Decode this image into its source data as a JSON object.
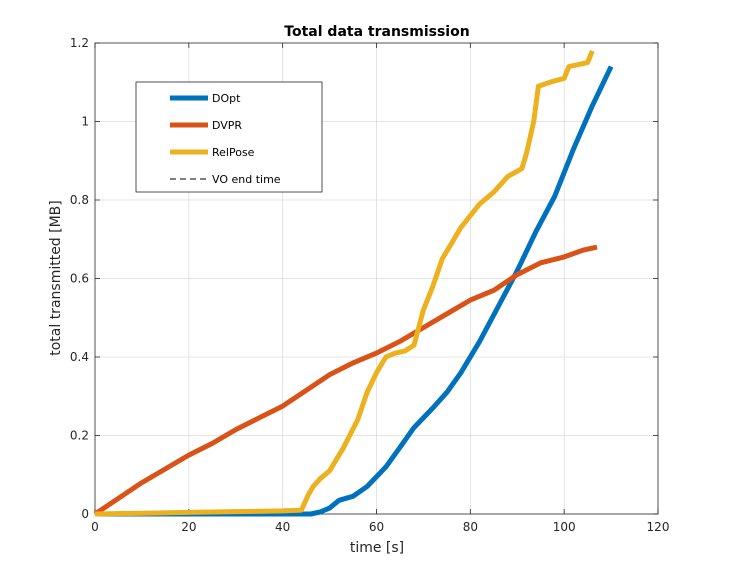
{
  "chart_data": {
    "type": "line",
    "title": "Total data transmission",
    "xlabel": "time [s]",
    "ylabel": "total transmitted [MB]",
    "xlim": [
      0,
      120
    ],
    "ylim": [
      0,
      1.2
    ],
    "xticks": [
      0,
      20,
      40,
      60,
      80,
      100,
      120
    ],
    "yticks": [
      0,
      0.2,
      0.4,
      0.6,
      0.8,
      1,
      1.2
    ],
    "grid": true,
    "legend_position": "top-left",
    "series": [
      {
        "name": "DOpt",
        "color": "#0072BD",
        "style": "solid",
        "x": [
          0,
          20,
          40,
          46,
          48,
          50,
          52,
          55,
          58,
          62,
          65,
          68,
          72,
          75,
          78,
          82,
          86,
          90,
          94,
          98,
          102,
          106,
          110
        ],
        "y": [
          0,
          0,
          0,
          0,
          0.005,
          0.015,
          0.035,
          0.045,
          0.07,
          0.12,
          0.17,
          0.22,
          0.27,
          0.31,
          0.36,
          0.44,
          0.53,
          0.62,
          0.72,
          0.81,
          0.93,
          1.04,
          1.14
        ]
      },
      {
        "name": "DVPR",
        "color": "#D95319",
        "style": "solid",
        "x": [
          0,
          5,
          10,
          15,
          20,
          25,
          30,
          35,
          40,
          45,
          50,
          55,
          60,
          65,
          70,
          75,
          80,
          85,
          90,
          95,
          100,
          104,
          107
        ],
        "y": [
          0,
          0.04,
          0.08,
          0.115,
          0.15,
          0.18,
          0.215,
          0.245,
          0.275,
          0.315,
          0.355,
          0.385,
          0.41,
          0.44,
          0.475,
          0.51,
          0.545,
          0.57,
          0.61,
          0.64,
          0.655,
          0.672,
          0.68
        ]
      },
      {
        "name": "RelPose",
        "color": "#EDB120",
        "style": "solid",
        "x": [
          0,
          10,
          20,
          30,
          40,
          44,
          45.5,
          46.5,
          48,
          50,
          53,
          56,
          58,
          60,
          62,
          64,
          66,
          68,
          70,
          72,
          74,
          76,
          78,
          80,
          82,
          85,
          88,
          91,
          92,
          93.5,
          94.5,
          97,
          100,
          101,
          105,
          106
        ],
        "y": [
          0,
          0.002,
          0.004,
          0.006,
          0.008,
          0.01,
          0.05,
          0.07,
          0.09,
          0.11,
          0.17,
          0.24,
          0.31,
          0.36,
          0.4,
          0.41,
          0.415,
          0.43,
          0.52,
          0.58,
          0.65,
          0.69,
          0.73,
          0.76,
          0.79,
          0.82,
          0.86,
          0.88,
          0.92,
          1.0,
          1.09,
          1.1,
          1.11,
          1.14,
          1.15,
          1.18
        ]
      }
    ],
    "legend_items": [
      {
        "label": "DOpt",
        "color": "#0072BD",
        "style": "solid"
      },
      {
        "label": "DVPR",
        "color": "#D95319",
        "style": "solid"
      },
      {
        "label": "RelPose",
        "color": "#EDB120",
        "style": "solid"
      },
      {
        "label": "VO end time",
        "color": "#000000",
        "style": "dashed"
      }
    ]
  }
}
